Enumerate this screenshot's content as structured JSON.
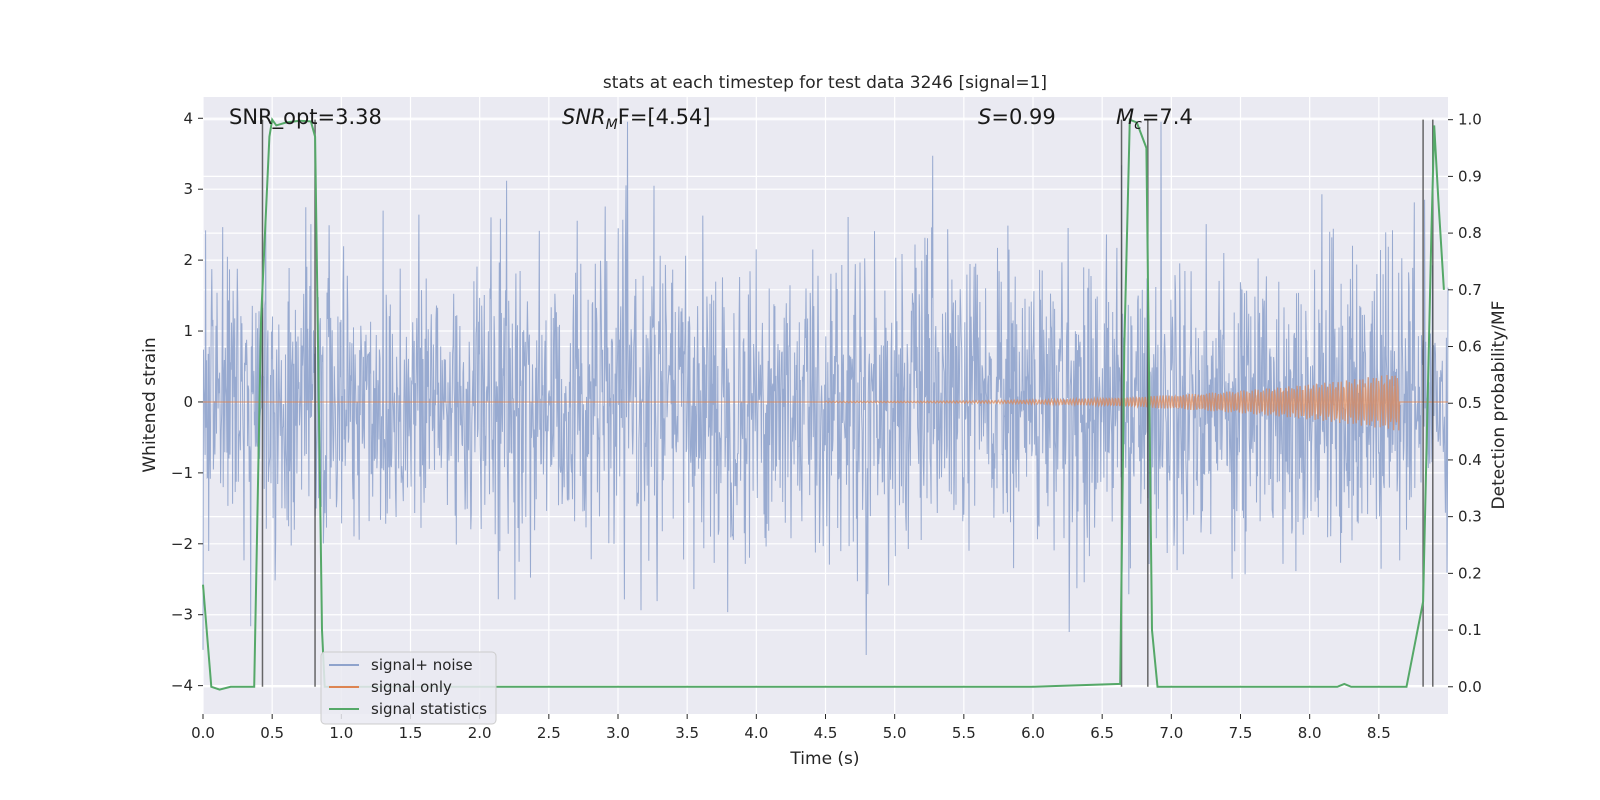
{
  "chart_data": {
    "type": "line",
    "title": "stats at each timestep for test data 3246 [signal=1]",
    "xlabel": "Time (s)",
    "ylabel": "Whitened strain",
    "y2label": "Detection probability/MF",
    "xlim": [
      0,
      9
    ],
    "ylim": [
      -4.4,
      4.3
    ],
    "y2lim": [
      -0.048,
      1.04
    ],
    "xticks": [
      "0.0",
      "0.5",
      "1.0",
      "1.5",
      "2.0",
      "2.5",
      "3.0",
      "3.5",
      "4.0",
      "4.5",
      "5.0",
      "5.5",
      "6.0",
      "6.5",
      "7.0",
      "7.5",
      "8.0",
      "8.5"
    ],
    "yticks": [
      "4",
      "3",
      "2",
      "1",
      "0",
      "−1",
      "−2",
      "−3",
      "−4"
    ],
    "y2ticks": [
      "1.0",
      "0.9",
      "0.8",
      "0.7",
      "0.6",
      "0.5",
      "0.4",
      "0.3",
      "0.2",
      "0.1",
      "0.0"
    ],
    "grid": true,
    "legend_position": "lower-left",
    "annotations": {
      "snr_opt": "SNR_opt=3.38",
      "snr_mf": "SNR",
      "snr_mf_sub": "M",
      "snr_mf_rest": "F=[4.54]",
      "s_var": "S",
      "s_val": "=0.99",
      "mc_var": "M",
      "mc_sub": "c",
      "mc_val": "=7.4"
    },
    "series": [
      {
        "name": "signal+ noise",
        "color": "#8fa3cc",
        "description_values": "whitened noise strain, approx within [-4, 4]"
      },
      {
        "name": "signal only",
        "color": "#dd8452",
        "chirp_start": 4.5,
        "chirp_end": 8.65,
        "amplitude_end": 0.4
      },
      {
        "name": "signal statistics",
        "color": "#55a868",
        "points": [
          [
            0.0,
            0.18
          ],
          [
            0.06,
            0.0
          ],
          [
            0.12,
            -0.005
          ],
          [
            0.2,
            0.0
          ],
          [
            0.37,
            0.0
          ],
          [
            0.42,
            0.65
          ],
          [
            0.48,
            0.97
          ],
          [
            0.5,
            1.0
          ],
          [
            0.53,
            0.99
          ],
          [
            0.6,
            0.995
          ],
          [
            0.7,
            0.998
          ],
          [
            0.78,
            0.997
          ],
          [
            0.81,
            0.97
          ],
          [
            0.86,
            0.1
          ],
          [
            0.88,
            0.0
          ],
          [
            2.0,
            0.0
          ],
          [
            4.0,
            0.0
          ],
          [
            6.0,
            0.0
          ],
          [
            6.63,
            0.005
          ],
          [
            6.66,
            0.6
          ],
          [
            6.7,
            1.0
          ],
          [
            6.75,
            0.995
          ],
          [
            6.82,
            0.95
          ],
          [
            6.86,
            0.1
          ],
          [
            6.9,
            0.0
          ],
          [
            8.2,
            0.0
          ],
          [
            8.25,
            0.005
          ],
          [
            8.3,
            0.0
          ],
          [
            8.7,
            0.0
          ],
          [
            8.82,
            0.15
          ],
          [
            8.88,
            0.8
          ],
          [
            8.9,
            0.99
          ],
          [
            8.93,
            0.86
          ],
          [
            8.97,
            0.7
          ]
        ]
      }
    ],
    "vlines": [
      0.43,
      0.81,
      6.64,
      6.83,
      8.82,
      8.89
    ]
  }
}
